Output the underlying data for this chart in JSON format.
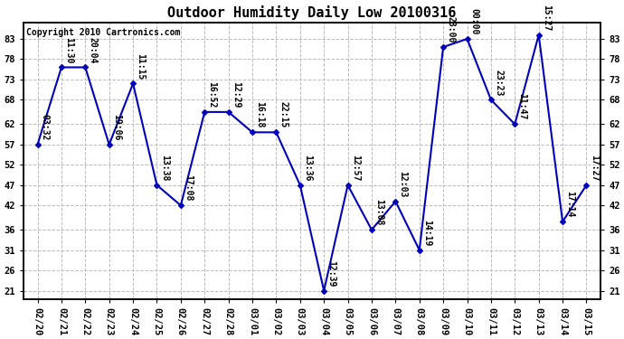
{
  "title": "Outdoor Humidity Daily Low 20100316",
  "copyright": "Copyright 2010 Cartronics.com",
  "x_labels": [
    "02/20",
    "02/21",
    "02/22",
    "02/23",
    "02/24",
    "02/25",
    "02/26",
    "02/27",
    "02/28",
    "03/01",
    "03/02",
    "03/03",
    "03/04",
    "03/05",
    "03/06",
    "03/07",
    "03/08",
    "03/09",
    "03/10",
    "03/11",
    "03/12",
    "03/13",
    "03/14",
    "03/15"
  ],
  "y_values": [
    57,
    76,
    76,
    57,
    72,
    47,
    42,
    65,
    65,
    60,
    60,
    47,
    21,
    47,
    36,
    43,
    31,
    81,
    83,
    68,
    62,
    84,
    38,
    47
  ],
  "time_labels": [
    "03:32",
    "11:30",
    "20:04",
    "19:06",
    "11:15",
    "13:38",
    "17:08",
    "16:52",
    "12:29",
    "16:18",
    "22:15",
    "13:36",
    "12:39",
    "12:57",
    "13:08",
    "12:03",
    "14:19",
    "23:00",
    "00:00",
    "23:23",
    "11:47",
    "15:27",
    "17:14",
    "17:27"
  ],
  "y_ticks": [
    21,
    26,
    31,
    36,
    42,
    47,
    52,
    57,
    62,
    68,
    73,
    78,
    83
  ],
  "ylim": [
    19,
    87
  ],
  "line_color": "#0000bb",
  "marker_color": "#0000bb",
  "bg_color": "#ffffff",
  "grid_color": "#bbbbbb",
  "title_fontsize": 11,
  "copyright_fontsize": 7,
  "label_fontsize": 7,
  "tick_fontsize": 7.5
}
